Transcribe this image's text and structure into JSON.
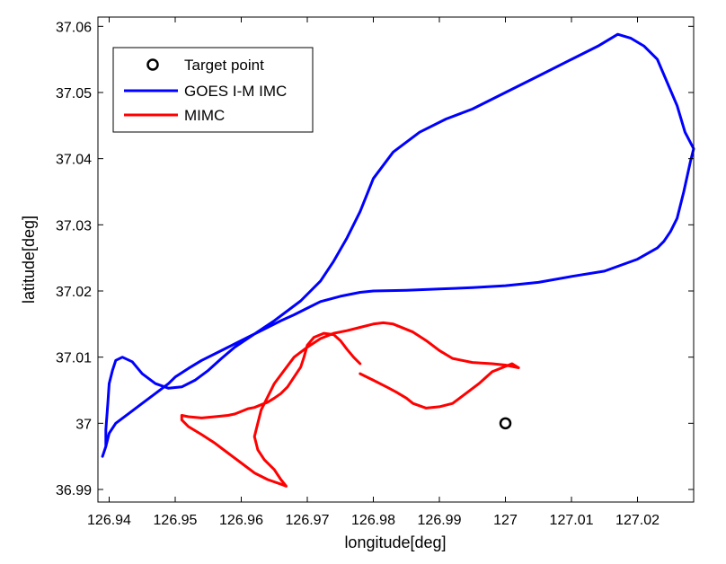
{
  "chart_data": {
    "type": "line",
    "xlabel": "longitude[deg]",
    "ylabel": "latitude[deg]",
    "xlim": [
      126.9383,
      127.0285
    ],
    "ylim": [
      36.9881,
      37.0614
    ],
    "xticks": [
      126.94,
      126.95,
      126.96,
      126.97,
      126.98,
      126.99,
      127,
      127.01,
      127.02
    ],
    "xtick_labels": [
      "126.94",
      "126.95",
      "126.96",
      "126.97",
      "126.98",
      "126.99",
      "127",
      "127.01",
      "127.02"
    ],
    "yticks": [
      36.99,
      37,
      37.01,
      37.02,
      37.03,
      37.04,
      37.05,
      37.06
    ],
    "ytick_labels": [
      "36.99",
      "37",
      "37.01",
      "37.02",
      "37.03",
      "37.04",
      "37.05",
      "37.06"
    ],
    "grid": false,
    "legend": "top-left",
    "target": {
      "name": "Target point",
      "x": 127.0,
      "y": 37.0,
      "color": "#000000"
    },
    "series": [
      {
        "name": "GOES I-M IMC",
        "color": "#0000ff",
        "x": [
          126.9395,
          126.9395,
          126.9398,
          126.94,
          126.9405,
          126.941,
          126.942,
          126.9435,
          126.945,
          126.947,
          126.949,
          126.951,
          126.953,
          126.955,
          126.957,
          126.959,
          126.962,
          126.965,
          126.969,
          126.972,
          126.974,
          126.976,
          126.978,
          126.98,
          126.983,
          126.987,
          126.991,
          126.995,
          127.0,
          127.005,
          127.01,
          127.014,
          127.017,
          127.019,
          127.021,
          127.023,
          127.026,
          127.0272,
          127.0285,
          127.028,
          127.027,
          127.026,
          127.025,
          127.024,
          127.023,
          127.02,
          127.015,
          127.01,
          127.005,
          127.0,
          126.995,
          126.99,
          126.985,
          126.98,
          126.978,
          126.975,
          126.972,
          126.97,
          126.968,
          126.966,
          126.964,
          126.962,
          126.96,
          126.958,
          126.956,
          126.954,
          126.952,
          126.95,
          126.949,
          126.947,
          126.945,
          126.943,
          126.941,
          126.94,
          126.9395,
          126.939
        ],
        "y": [
          36.9965,
          36.999,
          37.003,
          37.006,
          37.008,
          37.0095,
          37.01,
          37.0093,
          37.0075,
          37.006,
          37.0053,
          37.0055,
          37.0065,
          37.008,
          37.0098,
          37.0115,
          37.0135,
          37.0155,
          37.0185,
          37.0215,
          37.0245,
          37.028,
          37.032,
          37.037,
          37.041,
          37.044,
          37.046,
          37.0475,
          37.05,
          37.0525,
          37.055,
          37.057,
          37.0588,
          37.0582,
          37.057,
          37.055,
          37.048,
          37.044,
          37.0415,
          37.0395,
          37.035,
          37.031,
          37.029,
          37.0275,
          37.0265,
          37.0248,
          37.023,
          37.0222,
          37.0213,
          37.0208,
          37.0205,
          37.0203,
          37.0201,
          37.02,
          37.0198,
          37.0192,
          37.0184,
          37.0174,
          37.0164,
          37.0155,
          37.0145,
          37.0135,
          37.0125,
          37.0115,
          37.0105,
          37.0095,
          37.0083,
          37.007,
          37.006,
          37.0045,
          37.003,
          37.0015,
          37.0,
          36.9985,
          36.9965,
          36.995
        ]
      },
      {
        "name": "MIMC",
        "color": "#ff0000",
        "x": [
          126.978,
          126.977,
          126.976,
          126.975,
          126.974,
          126.9725,
          126.971,
          126.97,
          126.9695,
          126.969,
          126.968,
          126.967,
          126.966,
          126.965,
          126.964,
          126.963,
          126.962,
          126.961,
          126.96,
          126.959,
          126.958,
          126.956,
          126.954,
          126.952,
          126.951,
          126.951,
          126.952,
          126.954,
          126.956,
          126.958,
          126.96,
          126.962,
          126.964,
          126.966,
          126.9668,
          126.966,
          126.965,
          126.9635,
          126.9625,
          126.962,
          126.9625,
          126.963,
          126.964,
          126.965,
          126.9665,
          126.968,
          126.97,
          126.972,
          126.974,
          126.976,
          126.978,
          126.98,
          126.9815,
          126.983,
          126.986,
          126.988,
          126.99,
          126.992,
          126.995,
          126.998,
          127.0,
          127.002,
          127.001,
          126.998,
          126.996,
          126.994,
          126.992,
          126.99,
          126.988,
          126.986,
          126.985,
          126.9835,
          126.982,
          126.98,
          126.978
        ],
        "y": [
          37.009,
          37.01,
          37.0112,
          37.0125,
          37.0134,
          37.0136,
          37.013,
          37.0118,
          37.01,
          37.0085,
          37.007,
          37.0055,
          37.0045,
          37.0038,
          37.0032,
          37.0028,
          37.0024,
          37.0022,
          37.0018,
          37.0014,
          37.0012,
          37.001,
          37.0008,
          37.001,
          37.0012,
          37.0005,
          36.9995,
          36.9983,
          36.997,
          36.9955,
          36.994,
          36.9925,
          36.9915,
          36.9908,
          36.9905,
          36.9915,
          36.993,
          36.9945,
          36.996,
          36.998,
          37.0,
          37.002,
          37.004,
          37.006,
          37.008,
          37.01,
          37.0115,
          37.0128,
          37.0136,
          37.014,
          37.0145,
          37.015,
          37.0152,
          37.015,
          37.0138,
          37.0125,
          37.011,
          37.0098,
          37.0092,
          37.009,
          37.0088,
          37.0084,
          37.009,
          37.0078,
          37.006,
          37.0045,
          37.003,
          37.0025,
          37.0023,
          37.003,
          37.0038,
          37.0047,
          37.0055,
          37.0065,
          37.0075
        ]
      }
    ]
  }
}
